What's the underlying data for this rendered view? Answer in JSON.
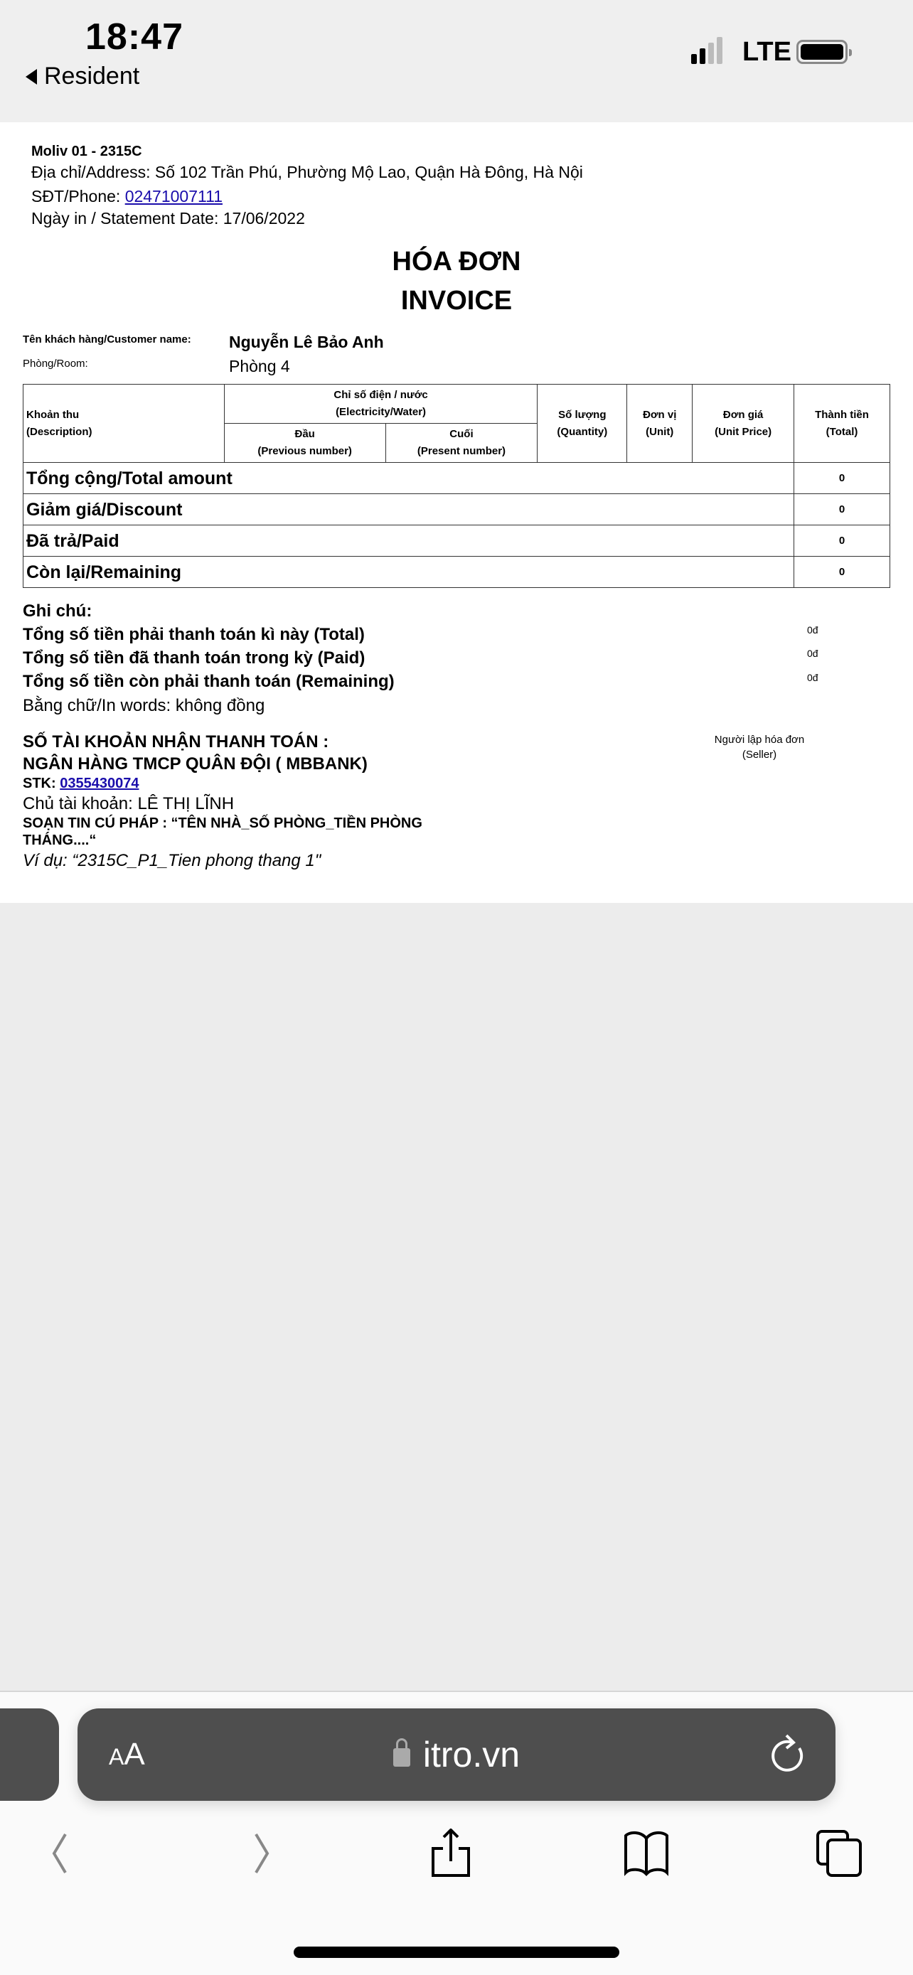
{
  "status": {
    "time": "18:47",
    "back_label": "Resident",
    "network": "LTE",
    "signal_bars": 2,
    "signal_total": 4
  },
  "invoice": {
    "company": "Moliv 01 - 2315C",
    "address": "Địa chỉ/Address: Số 102 Trần Phú, Phường Mộ Lao, Quận Hà Đông, Hà Nội",
    "phone_label": "SĐT/Phone: ",
    "phone": "02471007111",
    "date": "Ngày in / Statement Date: 17/06/2022",
    "title_vi": "HÓA ĐƠN",
    "title_en": "INVOICE",
    "customer_label": "Tên khách hàng/Customer name:",
    "customer": "Nguyễn Lê Bảo Anh",
    "room_label": "Phòng/Room:",
    "room": "Phòng 4",
    "table": {
      "h_desc": [
        "Khoản thu",
        "(Description)"
      ],
      "h_meter": [
        "Chỉ số điện / nước",
        "(Electricity/Water)"
      ],
      "h_prev": [
        "Đầu",
        "(Previous number)"
      ],
      "h_present": [
        "Cuối",
        "(Present number)"
      ],
      "h_qty": [
        "Số lượng",
        "(Quantity)"
      ],
      "h_unit": [
        "Đơn vị",
        "(Unit)"
      ],
      "h_price": [
        "Đơn giá",
        "(Unit Price)"
      ],
      "h_total": [
        "Thành tiền",
        "(Total)"
      ],
      "rows": [
        {
          "label": "Tổng cộng/Total amount",
          "value": "0"
        },
        {
          "label": "Giảm giá/Discount",
          "value": "0"
        },
        {
          "label": "Đã trả/Paid",
          "value": "0"
        },
        {
          "label": "Còn lại/Remaining",
          "value": "0"
        }
      ]
    },
    "notes": {
      "heading": "Ghi chú:",
      "lines": [
        {
          "label": "Tổng số tiền phải thanh toán kì này (Total)",
          "value": "0đ"
        },
        {
          "label": "Tổng số tiền đã thanh toán trong kỳ (Paid)",
          "value": "0đ"
        },
        {
          "label": "Tổng số tiền còn phải thanh toán (Remaining)",
          "value": "0đ"
        }
      ],
      "in_words": "Bằng chữ/In words: không đồng"
    },
    "bank": {
      "heading": "SỐ TÀI KHOẢN NHẬN THANH TOÁN :",
      "bank_name": "NGÂN HÀNG TMCP QUÂN ĐỘI ( MBBANK)",
      "stk_label": "STK: ",
      "stk": "0355430074",
      "holder": "Chủ tài khoản: LÊ THỊ LĨNH",
      "syntax": "SOẠN TIN CÚ PHÁP : “TÊN NHÀ_SỐ PHÒNG_TIỀN PHÒNG THÁNG....“",
      "example": "Ví dụ: “2315C_P1_Tien phong thang 1\""
    },
    "seller": [
      "Người lập hóa đơn",
      "(Seller)"
    ]
  },
  "browser": {
    "aa_small": "A",
    "aa_large": "A",
    "url": "itro.vn"
  }
}
